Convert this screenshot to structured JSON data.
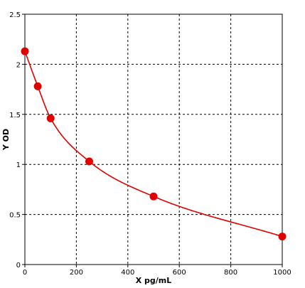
{
  "chart_data": {
    "type": "scatter",
    "title": "",
    "xlabel": "X pg/mL",
    "ylabel": "Y OD",
    "xlim": [
      0,
      1000
    ],
    "ylim": [
      0,
      2.5
    ],
    "grid": true,
    "grid_style": "dashed",
    "x_ticks": [
      0,
      200,
      400,
      600,
      800,
      1000
    ],
    "y_ticks": [
      0,
      0.5,
      1,
      1.5,
      2,
      2.5
    ],
    "x_tick_labels": [
      "0",
      "200",
      "400",
      "600",
      "800",
      "1000"
    ],
    "y_tick_labels": [
      "0",
      "0.5",
      "1",
      "1.5",
      "2",
      "2.5"
    ],
    "series": [
      {
        "color": "#e00000",
        "x": [
          0,
          50,
          100,
          250,
          500,
          1000
        ],
        "y": [
          2.13,
          1.78,
          1.46,
          1.03,
          0.68,
          0.28
        ],
        "fit": "curve"
      }
    ]
  }
}
